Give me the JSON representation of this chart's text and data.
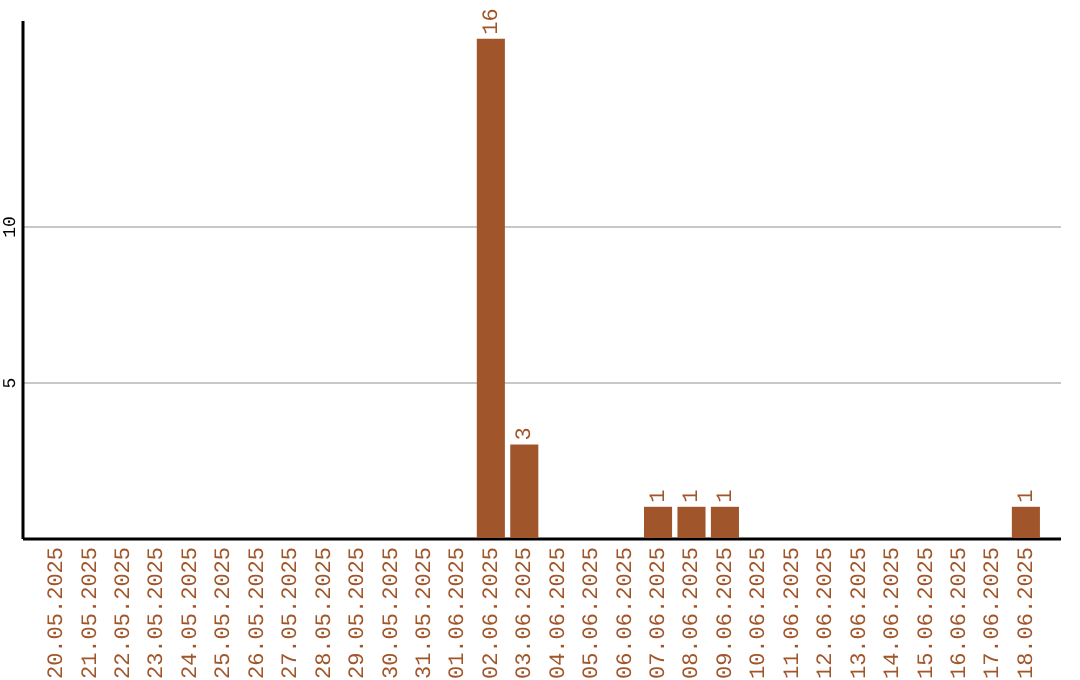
{
  "chart_data": {
    "type": "bar",
    "categories": [
      "20.05.2025",
      "21.05.2025",
      "22.05.2025",
      "23.05.2025",
      "24.05.2025",
      "25.05.2025",
      "26.05.2025",
      "27.05.2025",
      "28.05.2025",
      "29.05.2025",
      "30.05.2025",
      "31.05.2025",
      "01.06.2025",
      "02.06.2025",
      "03.06.2025",
      "04.06.2025",
      "05.06.2025",
      "06.06.2025",
      "07.06.2025",
      "08.06.2025",
      "09.06.2025",
      "10.06.2025",
      "11.06.2025",
      "12.06.2025",
      "13.06.2025",
      "14.06.2025",
      "15.06.2025",
      "16.06.2025",
      "17.06.2025",
      "18.06.2025"
    ],
    "values": [
      0,
      0,
      0,
      0,
      0,
      0,
      0,
      0,
      0,
      0,
      0,
      0,
      0,
      16,
      3,
      0,
      0,
      0,
      1,
      1,
      1,
      0,
      0,
      0,
      0,
      0,
      0,
      0,
      0,
      1
    ],
    "value_labels": [
      null,
      null,
      null,
      null,
      null,
      null,
      null,
      null,
      null,
      null,
      null,
      null,
      null,
      "16",
      "3",
      null,
      null,
      null,
      "1",
      "1",
      "1",
      null,
      null,
      null,
      null,
      null,
      null,
      null,
      null,
      "1"
    ],
    "color": "#a0562a",
    "ylim": [
      0,
      16.6
    ],
    "yticks": [
      5,
      10
    ],
    "grid": "y"
  }
}
